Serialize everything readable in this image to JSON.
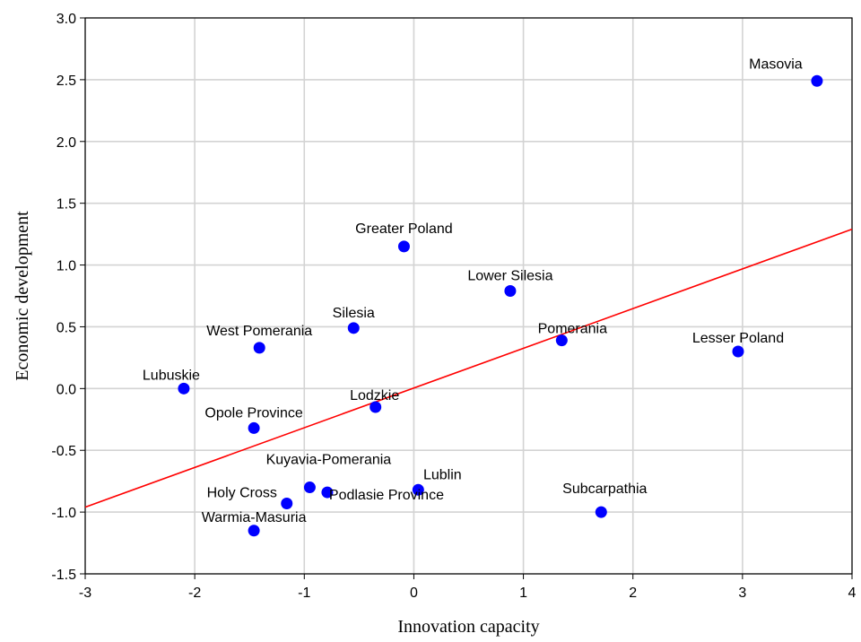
{
  "chart_data": {
    "type": "scatter",
    "title": "",
    "xlabel": "Innovation capacity",
    "ylabel": "Economic development",
    "xlim": [
      -3,
      4
    ],
    "ylim": [
      -1.5,
      3.0
    ],
    "xticks": [
      -3,
      -2,
      -1,
      0,
      1,
      2,
      3,
      4
    ],
    "yticks": [
      -1.5,
      -1.0,
      -0.5,
      0.0,
      0.5,
      1.0,
      1.5,
      2.0,
      2.5,
      3.0
    ],
    "x_tick_labels": [
      "-3",
      "-2",
      "-1",
      "0",
      "1",
      "2",
      "3",
      "4"
    ],
    "y_tick_labels": [
      "-1.5",
      "-1.0",
      "-0.5",
      "0.0",
      "0.5",
      "1.0",
      "1.5",
      "2.0",
      "2.5",
      "3.0"
    ],
    "grid": true,
    "point_color": "#0000ff",
    "line_color": "#ff0000",
    "points": [
      {
        "label": "Masovia",
        "x": 3.68,
        "y": 2.49
      },
      {
        "label": "Greater Poland",
        "x": -0.09,
        "y": 1.15
      },
      {
        "label": "Lower Silesia",
        "x": 0.88,
        "y": 0.79
      },
      {
        "label": "Silesia",
        "x": -0.55,
        "y": 0.49
      },
      {
        "label": "Pomerania",
        "x": 1.35,
        "y": 0.39
      },
      {
        "label": "West Pomerania",
        "x": -1.41,
        "y": 0.33
      },
      {
        "label": "Lesser Poland",
        "x": 2.96,
        "y": 0.3
      },
      {
        "label": "Lubuskie",
        "x": -2.1,
        "y": 0.0
      },
      {
        "label": "Lodzkie",
        "x": -0.35,
        "y": -0.15
      },
      {
        "label": "Opole Province",
        "x": -1.46,
        "y": -0.32
      },
      {
        "label": "Kuyavia-Pomerania",
        "x": -0.95,
        "y": -0.8
      },
      {
        "label": "Podlasie Province",
        "x": -0.79,
        "y": -0.84
      },
      {
        "label": "Lublin",
        "x": 0.04,
        "y": -0.82
      },
      {
        "label": "Holy Cross",
        "x": -1.16,
        "y": -0.93
      },
      {
        "label": "Subcarpathia",
        "x": 1.71,
        "y": -1.0
      },
      {
        "label": "Warmia-Masuria",
        "x": -1.46,
        "y": -1.15
      }
    ],
    "regression_line": {
      "x": [
        -3,
        4
      ],
      "y": [
        -0.96,
        1.29
      ]
    }
  }
}
